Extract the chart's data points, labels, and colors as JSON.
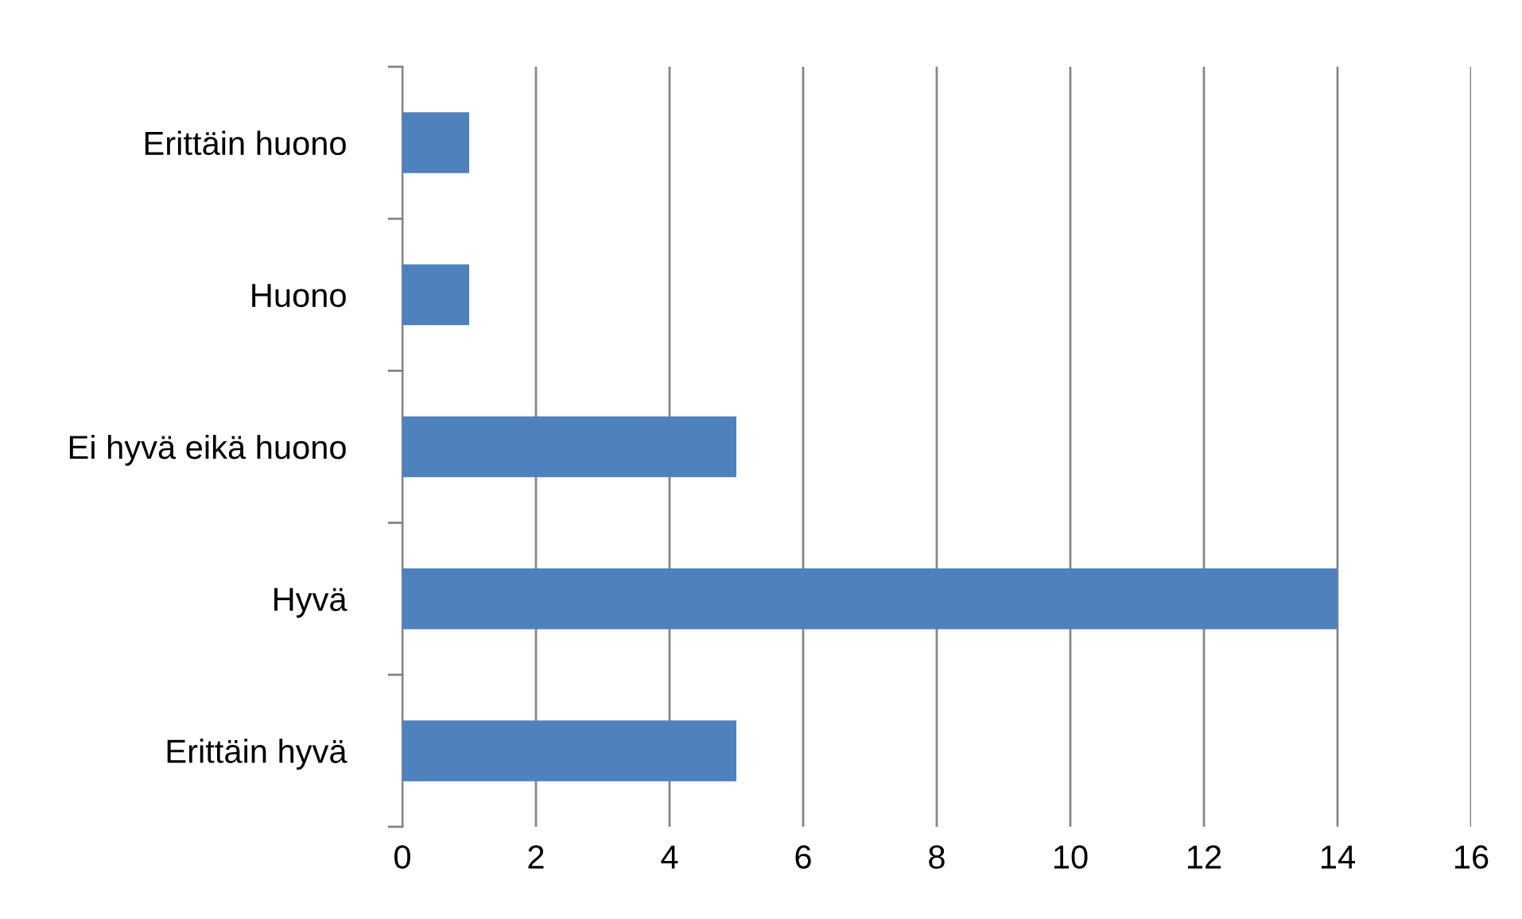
{
  "chart_data": {
    "type": "bar",
    "orientation": "horizontal",
    "categories": [
      "Erittäin huono",
      "Huono",
      "Ei hyvä eikä huono",
      "Hyvä",
      "Erittäin hyvä"
    ],
    "values": [
      1,
      1,
      5,
      14,
      5
    ],
    "color": "#4f81bd",
    "xlim": [
      0,
      16
    ],
    "xticks": [
      0,
      2,
      4,
      6,
      8,
      10,
      12,
      14,
      16
    ],
    "grid": "x"
  }
}
